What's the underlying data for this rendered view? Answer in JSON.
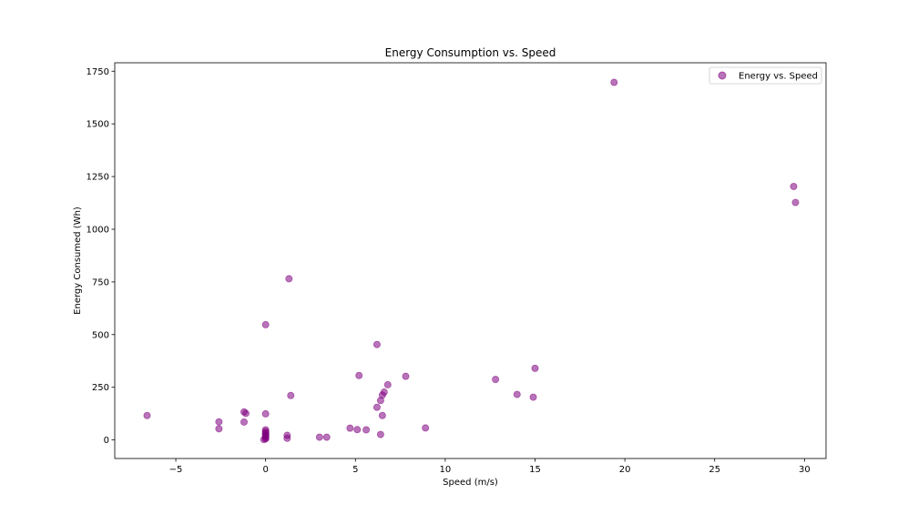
{
  "chart_data": {
    "type": "scatter",
    "title": "Energy Consumption vs. Speed",
    "xlabel": "Speed (m/s)",
    "ylabel": "Energy Consumed (Wh)",
    "xlim": [
      -8.4,
      31.2
    ],
    "ylim": [
      -88,
      1790
    ],
    "xticks": [
      -5,
      0,
      5,
      10,
      15,
      20,
      25,
      30
    ],
    "yticks": [
      0,
      250,
      500,
      750,
      1000,
      1250,
      1500,
      1750
    ],
    "grid": false,
    "legend_position": "top-right",
    "series": [
      {
        "name": "Energy vs. Speed",
        "color": "#800080",
        "alpha": 0.55,
        "points": [
          [
            19.4,
            1697
          ],
          [
            29.4,
            1203
          ],
          [
            29.5,
            1127
          ],
          [
            1.3,
            765
          ],
          [
            0.0,
            547
          ],
          [
            6.2,
            453
          ],
          [
            15.0,
            340
          ],
          [
            5.2,
            306
          ],
          [
            7.8,
            302
          ],
          [
            12.8,
            287
          ],
          [
            6.8,
            262
          ],
          [
            6.6,
            227
          ],
          [
            14.0,
            216
          ],
          [
            1.4,
            211
          ],
          [
            6.5,
            213
          ],
          [
            14.9,
            203
          ],
          [
            6.4,
            187
          ],
          [
            6.2,
            155
          ],
          [
            -1.2,
            133
          ],
          [
            -1.1,
            126
          ],
          [
            0.0,
            124
          ],
          [
            -6.6,
            116
          ],
          [
            6.5,
            116
          ],
          [
            -2.6,
            86
          ],
          [
            -1.2,
            85
          ],
          [
            -2.6,
            53
          ],
          [
            4.7,
            56
          ],
          [
            8.9,
            57
          ],
          [
            5.1,
            49
          ],
          [
            5.6,
            48
          ],
          [
            0.0,
            48
          ],
          [
            0.0,
            40
          ],
          [
            0.0,
            33
          ],
          [
            0.0,
            28
          ],
          [
            0.0,
            25
          ],
          [
            0.0,
            20
          ],
          [
            0.0,
            15
          ],
          [
            6.4,
            26
          ],
          [
            1.2,
            22
          ],
          [
            1.2,
            8
          ],
          [
            3.0,
            13
          ],
          [
            3.4,
            13
          ],
          [
            0.0,
            10
          ],
          [
            0.0,
            5
          ],
          [
            -0.1,
            2
          ]
        ]
      }
    ]
  }
}
